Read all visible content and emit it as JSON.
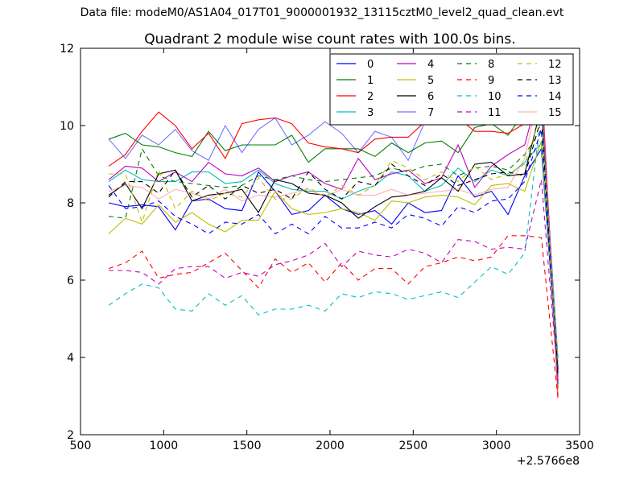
{
  "suptitle": "Data file: modeM0/AS1A04_017T01_9000001932_13115cztM0_level2_quad_clean.evt",
  "chart_data": {
    "type": "line",
    "title": "Quadrant 2 module wise count rates with 100.0s bins.",
    "xlabel": "",
    "ylabel": "",
    "x_offset_label": "+2.5766e8",
    "xlim": [
      500,
      3500
    ],
    "ylim": [
      2,
      12
    ],
    "xticks": [
      500,
      1000,
      1500,
      2000,
      2500,
      3000,
      3500
    ],
    "yticks": [
      2,
      4,
      6,
      8,
      10,
      12
    ],
    "grid": false,
    "legend_position": "top-right",
    "legend_columns": 4,
    "x": [
      670,
      770,
      870,
      970,
      1070,
      1170,
      1270,
      1370,
      1470,
      1570,
      1670,
      1770,
      1870,
      1970,
      2070,
      2170,
      2270,
      2370,
      2470,
      2570,
      2670,
      2770,
      2870,
      2970,
      3070,
      3170,
      3270,
      3370
    ],
    "series": [
      {
        "name": "0",
        "color": "#0000ff",
        "dash": "solid",
        "values": [
          8.0,
          7.9,
          7.95,
          7.9,
          7.3,
          8.05,
          8.1,
          7.85,
          7.8,
          8.8,
          8.3,
          7.7,
          7.8,
          8.2,
          7.85,
          7.7,
          7.8,
          7.45,
          8.0,
          7.75,
          7.8,
          8.7,
          8.15,
          8.3,
          7.7,
          8.7,
          9.4,
          3.6
        ]
      },
      {
        "name": "1",
        "color": "#008000",
        "dash": "solid",
        "values": [
          9.65,
          9.8,
          9.5,
          9.45,
          9.3,
          9.2,
          9.85,
          9.35,
          9.5,
          9.5,
          9.5,
          9.75,
          9.05,
          9.4,
          9.4,
          9.4,
          9.2,
          9.55,
          9.3,
          9.55,
          9.6,
          9.3,
          9.95,
          10.05,
          9.75,
          10.35,
          10.55,
          3.2
        ]
      },
      {
        "name": "2",
        "color": "#ff0000",
        "dash": "solid",
        "values": [
          8.95,
          9.25,
          9.85,
          10.35,
          10.0,
          9.4,
          9.8,
          9.15,
          10.05,
          10.15,
          10.2,
          10.05,
          9.55,
          9.45,
          9.4,
          9.3,
          9.65,
          9.7,
          9.7,
          10.1,
          10.15,
          10.2,
          9.85,
          9.85,
          9.8,
          10.05,
          11.35,
          3.0
        ]
      },
      {
        "name": "3",
        "color": "#00bfbf",
        "dash": "solid",
        "values": [
          8.55,
          8.85,
          8.6,
          8.55,
          8.55,
          8.8,
          8.8,
          8.5,
          8.55,
          8.85,
          8.5,
          8.35,
          8.3,
          8.3,
          8.1,
          8.3,
          8.45,
          8.8,
          8.7,
          8.3,
          8.45,
          8.9,
          8.55,
          8.85,
          8.7,
          9.05,
          9.55,
          3.5
        ]
      },
      {
        "name": "4",
        "color": "#bf00bf",
        "dash": "solid",
        "values": [
          8.6,
          8.95,
          8.9,
          8.55,
          8.8,
          8.55,
          9.05,
          8.75,
          8.7,
          8.9,
          8.55,
          8.7,
          8.8,
          8.5,
          8.35,
          9.15,
          8.6,
          8.75,
          8.85,
          8.5,
          8.65,
          9.5,
          8.4,
          8.95,
          9.25,
          9.5,
          11.1,
          3.4
        ]
      },
      {
        "name": "5",
        "color": "#bfbf00",
        "dash": "solid",
        "values": [
          7.2,
          7.6,
          7.45,
          7.95,
          7.5,
          7.75,
          7.45,
          7.25,
          7.55,
          7.55,
          8.3,
          7.85,
          7.7,
          7.75,
          7.85,
          7.75,
          7.55,
          8.05,
          8.0,
          8.15,
          8.2,
          8.15,
          7.95,
          8.45,
          8.5,
          8.3,
          9.6,
          3.8
        ]
      },
      {
        "name": "6",
        "color": "#000000",
        "dash": "solid",
        "values": [
          8.2,
          8.5,
          7.85,
          8.75,
          8.85,
          8.05,
          8.2,
          8.25,
          8.35,
          7.75,
          8.6,
          8.5,
          8.25,
          8.2,
          8.0,
          7.6,
          7.9,
          8.15,
          8.2,
          8.3,
          8.65,
          8.3,
          9.0,
          9.05,
          8.7,
          8.75,
          10.5,
          3.7
        ]
      },
      {
        "name": "7",
        "color": "#0000ff",
        "dash": "solid",
        "values": [
          9.65,
          9.15,
          9.75,
          9.5,
          9.9,
          9.35,
          9.1,
          10.0,
          9.3,
          9.9,
          10.2,
          9.5,
          9.75,
          10.1,
          9.8,
          9.3,
          9.85,
          9.7,
          9.1,
          10.1,
          10.6,
          10.1,
          10.6,
          10.3,
          10.75,
          10.8,
          10.5,
          4.0
        ],
        "light": true
      },
      {
        "name": "8",
        "color": "#008000",
        "dash": "dash",
        "values": [
          7.65,
          7.6,
          9.4,
          8.7,
          8.55,
          8.5,
          8.45,
          8.4,
          8.45,
          8.7,
          8.6,
          8.7,
          8.6,
          8.55,
          8.6,
          8.65,
          8.7,
          8.9,
          8.8,
          8.95,
          9.0,
          8.7,
          8.9,
          8.95,
          8.85,
          9.25,
          9.9,
          3.4
        ]
      },
      {
        "name": "9",
        "color": "#ff0000",
        "dash": "dash",
        "values": [
          6.3,
          6.45,
          6.75,
          6.05,
          6.15,
          6.2,
          6.45,
          6.7,
          6.25,
          5.8,
          6.55,
          6.2,
          6.45,
          5.95,
          6.45,
          6.0,
          6.3,
          6.3,
          5.9,
          6.35,
          6.45,
          6.6,
          6.5,
          6.6,
          7.15,
          7.15,
          7.1,
          2.95
        ]
      },
      {
        "name": "10",
        "color": "#00bfbf",
        "dash": "dash",
        "values": [
          5.35,
          5.65,
          5.9,
          5.8,
          5.25,
          5.2,
          5.65,
          5.35,
          5.6,
          5.1,
          5.25,
          5.25,
          5.35,
          5.2,
          5.65,
          5.55,
          5.7,
          5.65,
          5.5,
          5.6,
          5.7,
          5.55,
          5.95,
          6.35,
          6.15,
          6.7,
          10.35,
          3.8
        ]
      },
      {
        "name": "11",
        "color": "#bf00bf",
        "dash": "dash",
        "values": [
          6.25,
          6.25,
          6.2,
          5.9,
          6.3,
          6.35,
          6.35,
          6.05,
          6.2,
          6.1,
          6.4,
          6.5,
          6.65,
          6.95,
          6.35,
          6.75,
          6.65,
          6.6,
          6.8,
          6.7,
          6.45,
          7.05,
          7.0,
          6.8,
          6.85,
          6.8,
          8.6,
          3.4
        ]
      },
      {
        "name": "12",
        "color": "#bfbf00",
        "dash": "dash",
        "values": [
          8.75,
          8.75,
          7.5,
          8.85,
          7.85,
          8.3,
          8.05,
          8.25,
          8.15,
          8.65,
          8.1,
          8.1,
          8.4,
          8.15,
          8.45,
          8.2,
          8.45,
          9.1,
          8.9,
          8.6,
          8.8,
          8.55,
          8.95,
          8.6,
          8.75,
          9.0,
          10.3,
          3.9
        ]
      },
      {
        "name": "13",
        "color": "#000000",
        "dash": "dash",
        "values": [
          8.15,
          8.55,
          8.55,
          8.25,
          8.85,
          8.15,
          8.45,
          8.1,
          8.45,
          8.25,
          8.35,
          8.1,
          8.8,
          8.35,
          8.1,
          8.55,
          8.45,
          9.0,
          8.7,
          8.45,
          8.75,
          8.45,
          8.6,
          8.75,
          8.8,
          8.7,
          10.2,
          3.6
        ]
      },
      {
        "name": "14",
        "color": "#0000ff",
        "dash": "dash",
        "values": [
          8.45,
          7.85,
          7.9,
          8.05,
          7.65,
          7.45,
          7.2,
          7.5,
          7.45,
          7.7,
          7.2,
          7.45,
          7.2,
          7.65,
          7.35,
          7.35,
          7.5,
          7.35,
          7.7,
          7.6,
          7.4,
          7.9,
          7.75,
          8.05,
          8.1,
          8.55,
          9.9,
          3.3
        ]
      },
      {
        "name": "15",
        "color": "#ff7070",
        "dash": "solid",
        "values": [
          8.3,
          8.45,
          8.4,
          8.1,
          8.35,
          8.25,
          8.1,
          8.35,
          8.05,
          8.2,
          8.15,
          8.25,
          8.35,
          8.15,
          8.35,
          8.2,
          8.2,
          8.35,
          8.2,
          8.25,
          8.3,
          8.35,
          8.2,
          8.35,
          8.4,
          9.15,
          11.15,
          3.1
        ],
        "light": true
      }
    ]
  }
}
